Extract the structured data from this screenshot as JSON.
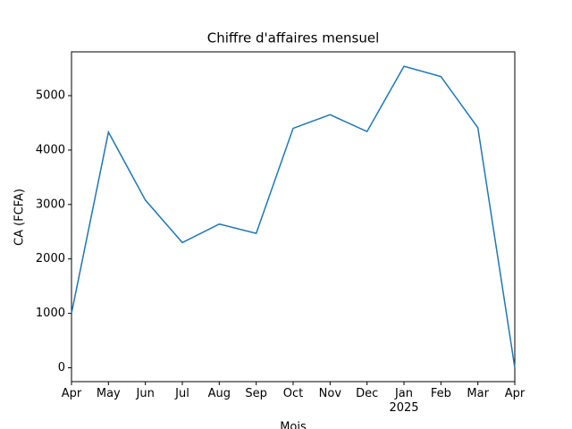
{
  "chart_data": {
    "type": "line",
    "title": "Chiffre d'affaires mensuel",
    "x_label": "Mois",
    "y_label": "CA (FCFA)",
    "categories": [
      "Apr",
      "May",
      "Jun",
      "Jul",
      "Aug",
      "Sep",
      "Oct",
      "Nov",
      "Dec",
      "Jan\n2025",
      "Feb",
      "Mar",
      "Apr"
    ],
    "series": [
      {
        "color": "#1f77b4",
        "values": [
          1000,
          4330,
          3080,
          2300,
          2640,
          2470,
          4400,
          4650,
          4340,
          5540,
          5350,
          4410,
          0
        ]
      }
    ],
    "ylim": [
      -255,
      5805
    ],
    "yticks": [
      0,
      1000,
      2000,
      3000,
      4000,
      5000
    ],
    "grid": false
  }
}
